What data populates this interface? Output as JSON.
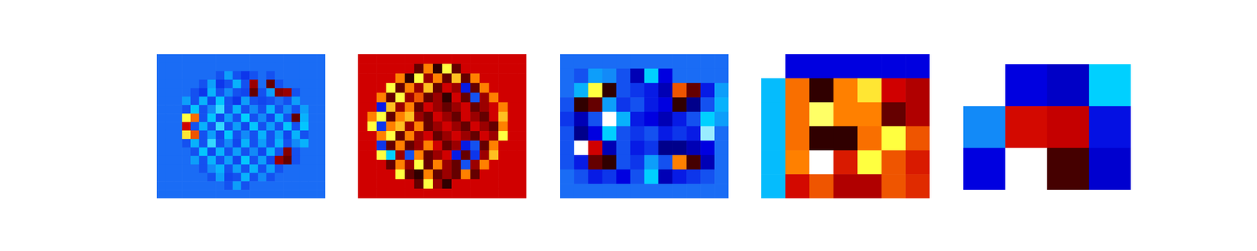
{
  "chart_data": [
    {
      "type": "heatmap",
      "tick_labels": false,
      "color_range": [
        0,
        1
      ],
      "cells": [
        [
          0.35,
          0.35,
          0.35,
          0.35,
          0.35,
          0.35,
          0.35,
          0.35,
          0.35,
          0.35,
          0.35,
          0.35,
          0.35,
          0.35,
          0.35,
          0.35,
          0.35,
          0.35,
          0.35,
          0.35
        ],
        [
          0.35,
          0.35,
          0.35,
          0.35,
          0.35,
          0.35,
          0.35,
          0.35,
          0.35,
          0.35,
          0.35,
          0.35,
          0.35,
          0.35,
          0.35,
          0.35,
          0.35,
          0.35,
          0.35,
          0.35
        ],
        [
          0.35,
          0.35,
          0.35,
          0.35,
          0.35,
          0.35,
          0.35,
          0.3,
          0.4,
          0.3,
          0.25,
          0.3,
          0.35,
          0.3,
          0.35,
          0.35,
          0.35,
          0.35,
          0.35,
          0.35
        ],
        [
          0.35,
          0.35,
          0.35,
          0.35,
          0.35,
          0.3,
          0.4,
          0.25,
          0.3,
          0.42,
          0.3,
          0.9,
          0.35,
          0.95,
          0.3,
          0.35,
          0.35,
          0.35,
          0.35,
          0.35
        ],
        [
          0.35,
          0.35,
          0.35,
          0.35,
          0.3,
          0.25,
          0.42,
          0.3,
          0.38,
          0.3,
          0.28,
          0.95,
          0.3,
          0.4,
          0.92,
          0.9,
          0.3,
          0.35,
          0.35,
          0.35
        ],
        [
          0.35,
          0.35,
          0.35,
          0.4,
          0.3,
          0.42,
          0.28,
          0.44,
          0.3,
          0.25,
          0.4,
          0.3,
          0.28,
          0.3,
          0.35,
          0.3,
          0.4,
          0.35,
          0.35,
          0.35
        ],
        [
          0.35,
          0.35,
          0.35,
          0.3,
          0.44,
          0.3,
          0.38,
          0.46,
          0.3,
          0.42,
          0.3,
          0.38,
          0.3,
          0.42,
          0.3,
          0.38,
          0.3,
          0.4,
          0.35,
          0.35
        ],
        [
          0.35,
          0.35,
          0.35,
          0.6,
          0.72,
          0.3,
          0.44,
          0.28,
          0.4,
          0.3,
          0.45,
          0.3,
          0.38,
          0.28,
          0.42,
          0.3,
          0.95,
          0.42,
          0.35,
          0.35
        ],
        [
          0.35,
          0.35,
          0.35,
          0.85,
          0.3,
          0.42,
          0.3,
          0.46,
          0.3,
          0.4,
          0.28,
          0.44,
          0.3,
          0.4,
          0.3,
          0.44,
          0.3,
          0.44,
          0.35,
          0.35
        ],
        [
          0.35,
          0.35,
          0.35,
          0.62,
          0.75,
          0.3,
          0.4,
          0.28,
          0.44,
          0.3,
          0.38,
          0.3,
          0.42,
          0.3,
          0.4,
          0.28,
          0.42,
          0.3,
          0.35,
          0.35
        ],
        [
          0.35,
          0.35,
          0.35,
          0.3,
          0.42,
          0.3,
          0.46,
          0.3,
          0.38,
          0.28,
          0.42,
          0.3,
          0.4,
          0.3,
          0.42,
          0.3,
          0.38,
          0.42,
          0.35,
          0.35
        ],
        [
          0.35,
          0.35,
          0.35,
          0.35,
          0.3,
          0.44,
          0.28,
          0.42,
          0.3,
          0.4,
          0.3,
          0.38,
          0.28,
          0.42,
          0.3,
          0.92,
          0.3,
          0.35,
          0.35,
          0.35
        ],
        [
          0.35,
          0.35,
          0.35,
          0.35,
          0.4,
          0.3,
          0.42,
          0.3,
          0.4,
          0.28,
          0.44,
          0.3,
          0.4,
          0.28,
          0.9,
          0.95,
          0.3,
          0.35,
          0.35,
          0.35
        ],
        [
          0.35,
          0.35,
          0.35,
          0.35,
          0.35,
          0.3,
          0.38,
          0.42,
          0.3,
          0.4,
          0.3,
          0.42,
          0.3,
          0.4,
          0.3,
          0.35,
          0.35,
          0.35,
          0.35,
          0.35
        ],
        [
          0.35,
          0.35,
          0.35,
          0.35,
          0.35,
          0.35,
          0.3,
          0.4,
          0.28,
          0.3,
          0.42,
          0.3,
          0.38,
          0.3,
          0.35,
          0.35,
          0.35,
          0.35,
          0.35,
          0.35
        ],
        [
          0.35,
          0.35,
          0.35,
          0.35,
          0.35,
          0.35,
          0.35,
          0.35,
          0.3,
          0.4,
          0.3,
          0.35,
          0.35,
          0.35,
          0.35,
          0.35,
          0.35,
          0.35,
          0.35,
          0.35
        ],
        [
          0.35,
          0.35,
          0.35,
          0.35,
          0.35,
          0.35,
          0.35,
          0.35,
          0.35,
          0.35,
          0.35,
          0.35,
          0.35,
          0.35,
          0.35,
          0.35,
          0.35,
          0.35,
          0.35,
          0.35
        ]
      ]
    },
    {
      "type": "heatmap",
      "tick_labels": false,
      "color_range": [
        0,
        1
      ],
      "cells": [
        [
          0.85,
          0.85,
          0.85,
          0.85,
          0.85,
          0.85,
          0.85,
          0.85,
          0.85,
          0.85,
          0.85,
          0.85,
          0.85,
          0.85,
          0.85,
          0.85,
          0.85,
          0.85
        ],
        [
          0.85,
          0.85,
          0.85,
          0.85,
          0.85,
          0.85,
          0.95,
          0.7,
          1,
          0.6,
          0.95,
          0.85,
          0.85,
          0.85,
          0.85,
          0.85,
          0.85,
          0.85
        ],
        [
          0.85,
          0.85,
          0.85,
          0.85,
          0.7,
          1,
          0.6,
          0.9,
          0.7,
          0.95,
          0.65,
          0.95,
          0.7,
          0.85,
          0.85,
          0.85,
          0.85,
          0.85
        ],
        [
          0.85,
          0.85,
          0.85,
          0.6,
          0.95,
          0.7,
          0.9,
          0.65,
          0.95,
          0.85,
          0.9,
          0.2,
          0.95,
          0.7,
          0.85,
          0.85,
          0.85,
          0.85
        ],
        [
          0.85,
          0.85,
          0.7,
          0.95,
          0.6,
          0.9,
          0.75,
          0.95,
          0.9,
          1,
          0.85,
          0.95,
          0.3,
          0.9,
          0.7,
          0.85,
          0.85,
          0.85
        ],
        [
          0.85,
          0.85,
          0.2,
          0.65,
          0.9,
          0.7,
          0.95,
          0.85,
          0.9,
          0.95,
          0.9,
          0.85,
          0.95,
          0.9,
          0.85,
          0.7,
          0.85,
          0.85
        ],
        [
          0.85,
          0.7,
          0.6,
          0.95,
          0.7,
          0.65,
          0.9,
          0.95,
          0.85,
          0.9,
          0.95,
          0.85,
          0.9,
          0.95,
          0.85,
          0.65,
          0.85,
          0.85
        ],
        [
          0.85,
          0.6,
          0.25,
          0.7,
          0.65,
          0.9,
          0.7,
          0.95,
          0.9,
          0.85,
          0.9,
          0.95,
          0.85,
          0.9,
          0.95,
          0.7,
          0.85,
          0.85
        ],
        [
          0.85,
          0.85,
          0.7,
          0.6,
          0.95,
          0.7,
          0.9,
          0.85,
          0.95,
          0.9,
          0.85,
          0.9,
          0.95,
          0.85,
          0.9,
          0.6,
          0.85,
          0.85
        ],
        [
          0.85,
          0.85,
          0.25,
          0.95,
          0.7,
          0.95,
          0.9,
          0.7,
          0.85,
          0.95,
          0.9,
          0.2,
          0.3,
          0.95,
          0.7,
          0.85,
          0.85,
          0.85
        ],
        [
          0.85,
          0.85,
          0.6,
          0.45,
          0.9,
          0.3,
          0.7,
          0.95,
          0.9,
          0.85,
          0.2,
          0.95,
          0.25,
          0.9,
          0.65,
          0.85,
          0.85,
          0.85
        ],
        [
          0.85,
          0.85,
          0.85,
          0.95,
          0.7,
          0.9,
          0.6,
          0.95,
          0.7,
          0.9,
          0.95,
          0.3,
          0.9,
          0.7,
          0.85,
          0.85,
          0.85,
          0.85
        ],
        [
          0.85,
          0.85,
          0.85,
          0.85,
          0.6,
          0.95,
          1,
          0.7,
          0.95,
          0.9,
          0.95,
          0.7,
          0.95,
          0.85,
          0.85,
          0.85,
          0.85,
          0.85
        ],
        [
          0.85,
          0.85,
          0.85,
          0.85,
          0.85,
          0.85,
          0.95,
          0.6,
          0.9,
          1,
          0.85,
          0.85,
          0.85,
          0.85,
          0.85,
          0.85,
          0.85,
          0.85
        ],
        [
          0.85,
          0.85,
          0.85,
          0.85,
          0.85,
          0.85,
          0.85,
          0.85,
          0.85,
          0.85,
          0.85,
          0.85,
          0.85,
          0.85,
          0.85,
          0.85,
          0.85,
          0.85
        ]
      ]
    },
    {
      "type": "heatmap",
      "tick_labels": false,
      "color_range": [
        0,
        1
      ],
      "cells": [
        [
          0.35,
          0.35,
          0.35,
          0.35,
          0.35,
          0.35,
          0.35,
          0.35,
          0.35,
          0.35,
          0.35,
          0.35
        ],
        [
          0.35,
          0.3,
          0.4,
          0.38,
          0.3,
          0.1,
          0.45,
          0.15,
          0.35,
          0.35,
          0.35,
          0.35
        ],
        [
          0.35,
          0.42,
          0.6,
          1,
          0.3,
          0.25,
          0.2,
          0.1,
          0.75,
          0.95,
          0.2,
          0.4
        ],
        [
          0.3,
          1,
          0.95,
          0.4,
          0.25,
          0.3,
          0.2,
          0.15,
          1,
          0.05,
          0.3,
          0.42
        ],
        [
          0.25,
          0.1,
          0.3,
          0.5,
          0.42,
          0.2,
          0.15,
          0.1,
          0.2,
          0.3,
          0.45,
          0.4
        ],
        [
          0.3,
          0.05,
          0.15,
          0.45,
          0.3,
          0.25,
          0.3,
          0.2,
          0.25,
          0.2,
          0.48,
          0.35
        ],
        [
          0.3,
          0.5,
          0.85,
          0.1,
          0.3,
          0.2,
          0.25,
          0.05,
          0.05,
          0.1,
          0.15,
          0.35
        ],
        [
          0.3,
          0.2,
          0.95,
          1,
          0.3,
          0.25,
          0.4,
          0.3,
          0.7,
          0.98,
          0.1,
          0.35
        ],
        [
          0.35,
          0.3,
          0.2,
          0.25,
          0.15,
          0.3,
          0.45,
          0.1,
          0.2,
          0.25,
          0.3,
          0.35
        ],
        [
          0.35,
          0.35,
          0.35,
          0.35,
          0.35,
          0.35,
          0.35,
          0.35,
          0.35,
          0.35,
          0.35,
          0.35
        ]
      ]
    },
    {
      "type": "heatmap",
      "tick_labels": false,
      "color_range": [
        0,
        1
      ],
      "cells": [
        [
          null,
          0.15,
          0.15,
          0.15,
          0.15,
          0.15,
          0.15
        ],
        [
          0.43,
          0.72,
          1,
          0.7,
          0.62,
          0.85,
          0.88
        ],
        [
          0.43,
          0.72,
          0.58,
          0.7,
          0.7,
          0.95,
          0.88
        ],
        [
          0.43,
          0.72,
          1,
          1,
          0.72,
          0.6,
          0.75
        ],
        [
          0.43,
          0.7,
          0.5,
          0.82,
          0.6,
          0.75,
          0.82
        ],
        [
          0.43,
          0.84,
          0.75,
          0.88,
          0.88,
          0.75,
          0.8
        ]
      ]
    },
    {
      "type": "heatmap",
      "tick_labels": false,
      "color_range": [
        0,
        1
      ],
      "cells": [
        [
          null,
          0.15,
          0.12,
          0.45
        ],
        [
          0.38,
          0.84,
          0.86,
          0.18
        ],
        [
          0.15,
          0.5,
          0.98,
          0.13
        ]
      ]
    }
  ]
}
